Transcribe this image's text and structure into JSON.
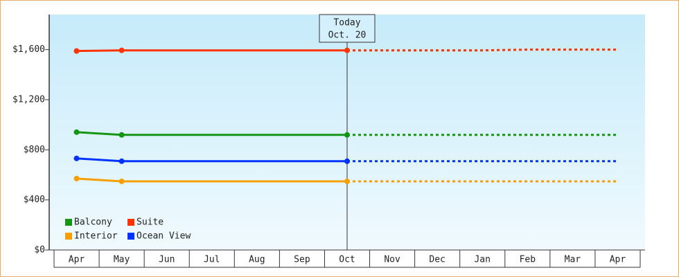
{
  "chart_data": {
    "type": "line",
    "categories": [
      "Apr",
      "May",
      "Jun",
      "Jul",
      "Aug",
      "Sep",
      "Oct",
      "Nov",
      "Dec",
      "Jan",
      "Feb",
      "Mar",
      "Apr"
    ],
    "ylim": [
      0,
      1880
    ],
    "yticks": [
      {
        "value": 0,
        "label": "$0"
      },
      {
        "value": 400,
        "label": "$400"
      },
      {
        "value": 800,
        "label": "$800"
      },
      {
        "value": 1200,
        "label": "$1,200"
      },
      {
        "value": 1600,
        "label": "$1,600"
      }
    ],
    "today": {
      "lines": [
        "Today",
        "Oct. 20"
      ],
      "category": "Oct"
    },
    "legend": "bottom-left",
    "series": [
      {
        "name": "Balcony",
        "color": "#139613",
        "values": [
          941,
          919,
          919,
          919,
          919,
          919,
          919,
          null,
          null,
          null,
          null,
          null,
          null
        ],
        "projected_values": [
          null,
          null,
          null,
          null,
          null,
          null,
          919,
          919,
          919,
          919,
          919,
          919,
          919
        ]
      },
      {
        "name": "Suite",
        "color": "#ff3300",
        "values": [
          1589,
          1594,
          1594,
          1594,
          1594,
          1594,
          1594,
          null,
          null,
          null,
          null,
          null,
          null
        ],
        "projected_values": [
          null,
          null,
          null,
          null,
          null,
          null,
          1594,
          1594,
          1594,
          1594,
          1600,
          1600,
          1600
        ]
      },
      {
        "name": "Interior",
        "color": "#f5a000",
        "values": [
          570,
          548,
          548,
          548,
          548,
          548,
          548,
          null,
          null,
          null,
          null,
          null,
          null
        ],
        "projected_values": [
          null,
          null,
          null,
          null,
          null,
          null,
          548,
          548,
          548,
          548,
          548,
          548,
          548
        ]
      },
      {
        "name": "Ocean View",
        "color": "#0033ff",
        "values": [
          731,
          709,
          709,
          709,
          709,
          709,
          709,
          null,
          null,
          null,
          null,
          null,
          null
        ],
        "projected_values": [
          null,
          null,
          null,
          null,
          null,
          null,
          709,
          709,
          709,
          709,
          709,
          709,
          709
        ]
      }
    ]
  }
}
